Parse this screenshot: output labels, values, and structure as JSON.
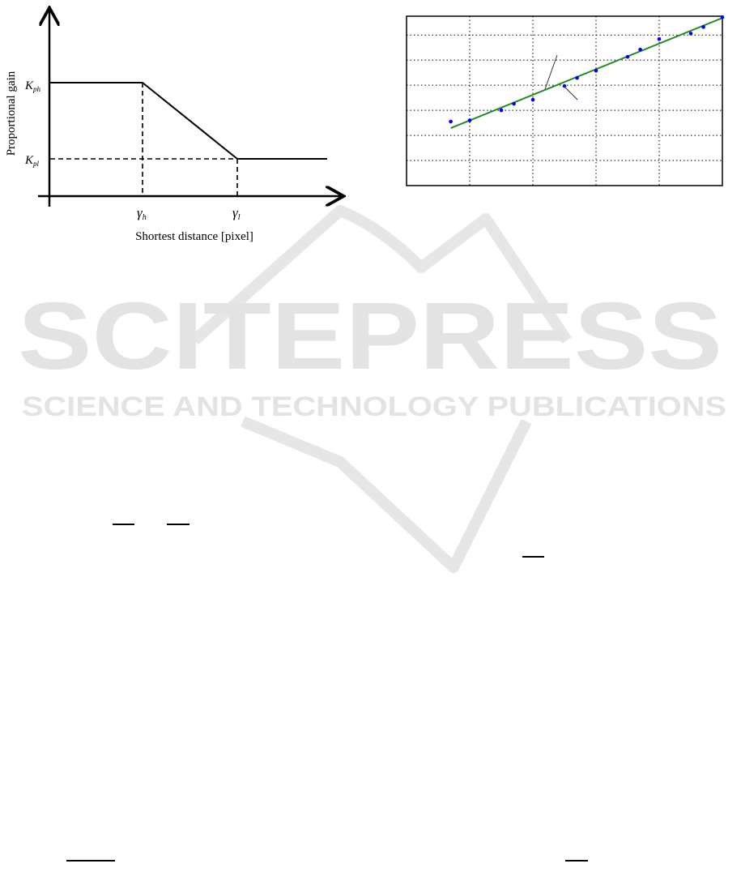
{
  "figure_left": {
    "ylabel": "Proportional gain",
    "xlabel": "Shortest distance [pixel]",
    "y_tick_high": "K",
    "y_tick_high_sub": "ph",
    "y_tick_low": "K",
    "y_tick_low_sub": "pl",
    "x_tick_high": "γ",
    "x_tick_high_sub": "h",
    "x_tick_low": "γ",
    "x_tick_low_sub": "l"
  },
  "chart_data": {
    "type": "scatter",
    "title": "",
    "xlabel": "",
    "ylabel": "",
    "xlim": [
      0,
      5
    ],
    "ylim": [
      0,
      6.75
    ],
    "grid": true,
    "x_gridlines": [
      1,
      2,
      3,
      4
    ],
    "y_gridlines": [
      1,
      2,
      3,
      4,
      5,
      6
    ],
    "points": {
      "x": [
        0.7,
        1.0,
        1.5,
        1.7,
        2.0,
        2.5,
        2.7,
        3.0,
        3.5,
        3.7,
        4.0,
        4.5,
        4.7,
        5.0
      ],
      "y": [
        2.55,
        2.6,
        3.0,
        3.26,
        3.42,
        3.97,
        4.29,
        4.58,
        5.13,
        5.42,
        5.84,
        6.06,
        6.32,
        6.71
      ],
      "color": "#0000ff"
    },
    "fit_line": {
      "x": [
        0.7,
        5.0
      ],
      "y": [
        2.29,
        6.68
      ],
      "color": "#228b22"
    }
  },
  "watermark": {
    "title": "SCITEPRESS",
    "subtitle": "SCIENCE AND TECHNOLOGY PUBLICATIONS"
  }
}
